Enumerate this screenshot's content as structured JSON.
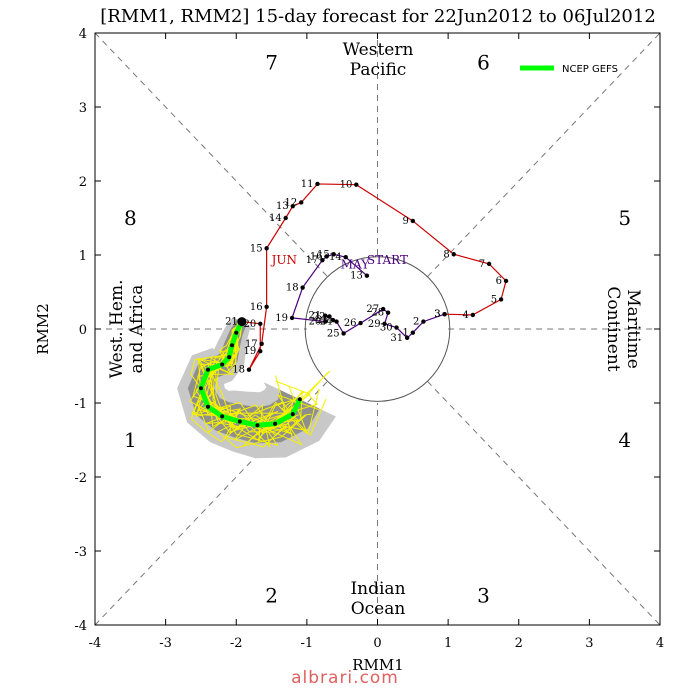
{
  "chart_data": {
    "type": "scatter",
    "title": "[RMM1, RMM2] 15-day forecast for 22Jun2012 to 06Jul2012",
    "xlabel": "RMM1",
    "ylabel": "RMM2",
    "xlim": [
      -4,
      4
    ],
    "ylim": [
      -4,
      4
    ],
    "x_ticks": [
      "-4",
      "-3",
      "-2",
      "-1",
      "0",
      "1",
      "2",
      "3",
      "4"
    ],
    "y_ticks": [
      "-4",
      "-3",
      "-2",
      "-1",
      "0",
      "1",
      "2",
      "3",
      "4"
    ],
    "unit_circle_radius": 1,
    "phases": [
      {
        "label": "1",
        "x": -3.5,
        "y": -1.5
      },
      {
        "label": "2",
        "x": -1.5,
        "y": -3.6
      },
      {
        "label": "3",
        "x": 1.5,
        "y": -3.6
      },
      {
        "label": "4",
        "x": 3.5,
        "y": -1.5
      },
      {
        "label": "5",
        "x": 3.5,
        "y": 1.5
      },
      {
        "label": "6",
        "x": 1.5,
        "y": 3.6
      },
      {
        "label": "7",
        "x": -1.5,
        "y": 3.6
      },
      {
        "label": "8",
        "x": -3.5,
        "y": 1.5
      }
    ],
    "regions": {
      "top": [
        "Western",
        "Pacific"
      ],
      "bottom": [
        "Indian",
        "Ocean"
      ],
      "left": [
        "West. Hem.",
        "and Africa"
      ],
      "right": [
        "Maritime",
        "Continent"
      ]
    },
    "legend": {
      "label": "NCEP GEFS",
      "color": "#00ff00",
      "placement": "top-right"
    },
    "month_labels": [
      {
        "text": "JUN",
        "x": -1.5,
        "y": 0.88,
        "color": "#cc0000"
      },
      {
        "text": "MAY",
        "x": -0.52,
        "y": 0.82,
        "color": "#4b0082"
      },
      {
        "text": "START",
        "x": -0.15,
        "y": 0.88,
        "color": "#4b0082"
      }
    ],
    "observed_may": {
      "color": "#4b0082",
      "points": [
        {
          "day": "13",
          "x": -0.15,
          "y": 0.72
        },
        {
          "day": "14",
          "x": -0.45,
          "y": 0.97
        },
        {
          "day": "15",
          "x": -0.62,
          "y": 1.01
        },
        {
          "day": "16",
          "x": -0.72,
          "y": 0.98
        },
        {
          "day": "17",
          "x": -0.78,
          "y": 0.93
        },
        {
          "day": "18",
          "x": -1.06,
          "y": 0.56
        },
        {
          "day": "19",
          "x": -1.21,
          "y": 0.15
        },
        {
          "day": "20",
          "x": -0.74,
          "y": 0.1
        },
        {
          "day": "21",
          "x": -0.74,
          "y": 0.18
        },
        {
          "day": "22",
          "x": -0.68,
          "y": 0.17
        },
        {
          "day": "23",
          "x": -0.63,
          "y": 0.12
        },
        {
          "day": "24",
          "x": -0.58,
          "y": 0.1
        },
        {
          "day": "25",
          "x": -0.48,
          "y": -0.06
        },
        {
          "day": "26",
          "x": -0.24,
          "y": 0.08
        },
        {
          "day": "27",
          "x": 0.08,
          "y": 0.27
        },
        {
          "day": "28",
          "x": 0.15,
          "y": 0.22
        },
        {
          "day": "29",
          "x": 0.1,
          "y": 0.07
        },
        {
          "day": "30",
          "x": 0.27,
          "y": 0.02
        },
        {
          "day": "31",
          "x": 0.42,
          "y": -0.12
        },
        {
          "day": "1",
          "x": 0.5,
          "y": -0.05
        },
        {
          "day": "2",
          "x": 0.65,
          "y": 0.1
        },
        {
          "day": "3",
          "x": 0.95,
          "y": 0.2
        }
      ]
    },
    "observed_jun": {
      "color": "#cc0000",
      "points": [
        {
          "day": "3",
          "x": 0.95,
          "y": 0.2
        },
        {
          "day": "4",
          "x": 1.35,
          "y": 0.19
        },
        {
          "day": "5",
          "x": 1.75,
          "y": 0.4
        },
        {
          "day": "6",
          "x": 1.82,
          "y": 0.65
        },
        {
          "day": "7",
          "x": 1.58,
          "y": 0.88
        },
        {
          "day": "8",
          "x": 1.08,
          "y": 1.01
        },
        {
          "day": "9",
          "x": 0.5,
          "y": 1.46
        },
        {
          "day": "10",
          "x": -0.3,
          "y": 1.95
        },
        {
          "day": "11",
          "x": -0.85,
          "y": 1.96
        },
        {
          "day": "12",
          "x": -1.08,
          "y": 1.71
        },
        {
          "day": "13",
          "x": -1.2,
          "y": 1.66
        },
        {
          "day": "14",
          "x": -1.3,
          "y": 1.5
        },
        {
          "day": "15",
          "x": -1.57,
          "y": 1.09
        },
        {
          "day": "16",
          "x": -1.57,
          "y": 0.3
        },
        {
          "day": "17",
          "x": -1.64,
          "y": -0.2
        },
        {
          "day": "18",
          "x": -1.82,
          "y": -0.55
        },
        {
          "day": "19",
          "x": -1.66,
          "y": -0.3
        },
        {
          "day": "20",
          "x": -1.66,
          "y": 0.07
        },
        {
          "day": "21",
          "x": -1.92,
          "y": 0.1
        }
      ]
    },
    "forecast_mean": {
      "name": "NCEP GEFS",
      "color": "#00ff00",
      "points": [
        {
          "x": -1.92,
          "y": 0.1
        },
        {
          "x": -2.0,
          "y": -0.05
        },
        {
          "x": -2.06,
          "y": -0.22
        },
        {
          "x": -2.1,
          "y": -0.38
        },
        {
          "x": -2.2,
          "y": -0.48
        },
        {
          "x": -2.4,
          "y": -0.55
        },
        {
          "x": -2.5,
          "y": -0.8
        },
        {
          "x": -2.4,
          "y": -1.05
        },
        {
          "x": -2.2,
          "y": -1.18
        },
        {
          "x": -1.95,
          "y": -1.25
        },
        {
          "x": -1.7,
          "y": -1.3
        },
        {
          "x": -1.45,
          "y": -1.28
        },
        {
          "x": -1.2,
          "y": -1.15
        },
        {
          "x": -1.1,
          "y": -0.95
        }
      ]
    }
  },
  "watermark": "albrari.com"
}
